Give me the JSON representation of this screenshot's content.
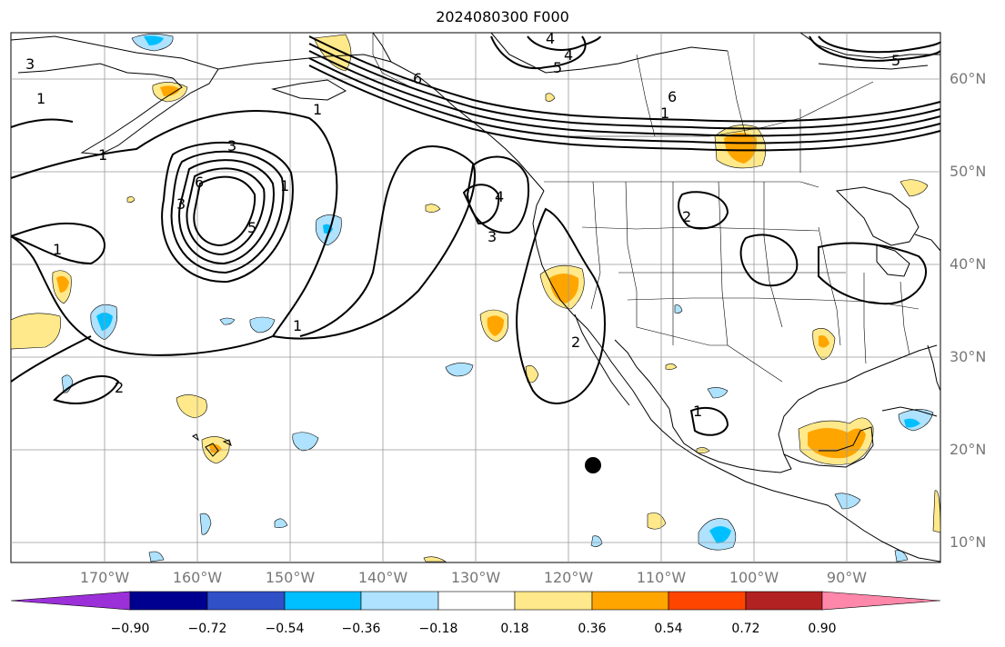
{
  "title": "2024080300 F000",
  "lat_labels": [
    "60°N",
    "50°N",
    "40°N",
    "30°N",
    "20°N",
    "10°N"
  ],
  "lon_labels": [
    "170°W",
    "160°W",
    "150°W",
    "140°W",
    "130°W",
    "120°W",
    "110°W",
    "100°W",
    "90°W"
  ],
  "colorbar": {
    "ticks": [
      "−0.90",
      "−0.72",
      "−0.54",
      "−0.36",
      "−0.18",
      "0.18",
      "0.36",
      "0.54",
      "0.72",
      "0.90"
    ],
    "colors": {
      "under": "#9b30d9",
      "bins": [
        "#000090",
        "#3050c8",
        "#00bfff",
        "#aee2ff",
        "#ffffff",
        "#ffe98a",
        "#ffa500",
        "#ff4500",
        "#b22222",
        "#ff88aa"
      ],
      "over": "#ff88aa"
    }
  },
  "contour_labels": [
    "3",
    "4",
    "5",
    "6",
    "6",
    "5",
    "4",
    "1",
    "1",
    "1",
    "3",
    "1",
    "6",
    "5",
    "3",
    "1",
    "4",
    "3",
    "2",
    "1",
    "2",
    "1",
    "2",
    "1"
  ],
  "colors": {
    "land_outline": "#000000",
    "grid": "#999999",
    "contour": "#000000",
    "marker": "#000000"
  }
}
